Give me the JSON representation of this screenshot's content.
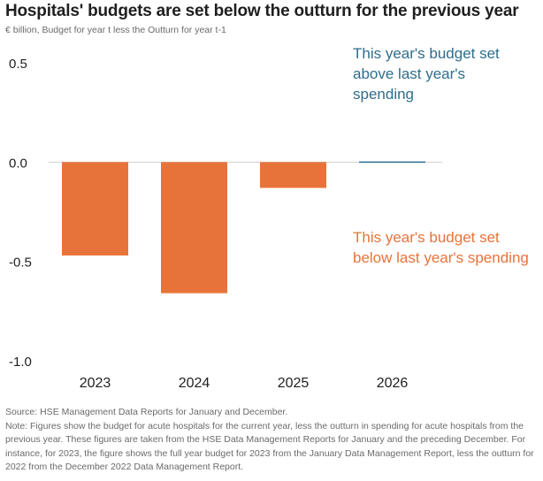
{
  "header": {
    "title": "Hospitals' budgets are set below the outturn for the previous year",
    "subtitle": "€ billion, Budget for year t less the Outturn for year t-1"
  },
  "annotations": {
    "above": "This year's budget set above last year's spending",
    "below": "This year's budget set below last year's spending"
  },
  "footer": {
    "source": "Source: HSE Management Data Reports for January and December.",
    "note": "Note: Figures show the budget for acute hospitals for the current year, less the outturn in spending for acute hospitals from the previous year. These figures are taken from the HSE Data Management Reports for January and the preceding December. For instance, for 2023, the figure shows the full year budget for 2023 from the January Data Management Report, less the outturn for 2022 from the December 2022 Data Management Report."
  },
  "colors": {
    "negative": "#e8733a",
    "positive": "#2e6e8e",
    "zero_line": "#d0d0d0"
  },
  "chart_data": {
    "type": "bar",
    "title": "Hospitals' budgets are set below the outturn for the previous year",
    "subtitle": "€ billion, Budget for year t less the Outturn for year t-1",
    "categories": [
      "2023",
      "2024",
      "2025",
      "2026"
    ],
    "values": [
      -0.47,
      -0.66,
      -0.13,
      0.0
    ],
    "ylim": [
      -1.0,
      0.5
    ],
    "yticks": [
      0.5,
      0.0,
      -0.5,
      -1.0
    ],
    "ytick_labels": [
      "0.5",
      "0.0",
      "-0.5",
      "-1.0"
    ],
    "grid": false,
    "legend": "none"
  }
}
